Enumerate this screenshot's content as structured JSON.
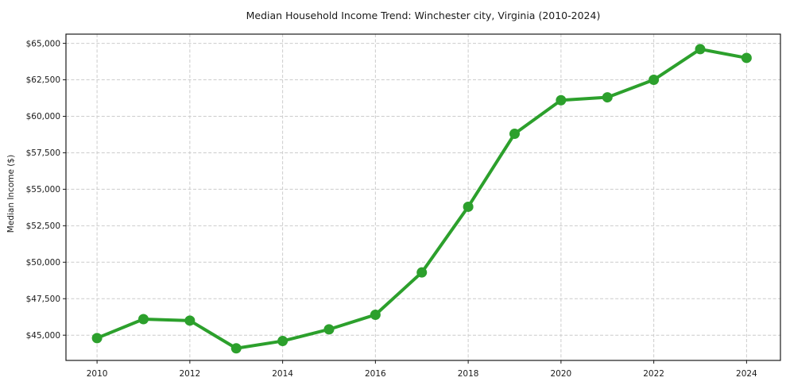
{
  "chart_data": {
    "type": "line",
    "title": "Median Household Income Trend: Winchester city, Virginia (2010-2024)",
    "xlabel": "",
    "ylabel": "Median Income ($)",
    "x": [
      2010,
      2011,
      2012,
      2013,
      2014,
      2015,
      2016,
      2017,
      2018,
      2019,
      2020,
      2021,
      2022,
      2023,
      2024
    ],
    "values": [
      44800,
      46100,
      46000,
      44100,
      44600,
      45400,
      46400,
      49300,
      53800,
      58800,
      61100,
      61300,
      62500,
      64600,
      64000
    ],
    "xlim": [
      2009.33,
      2024.73
    ],
    "ylim": [
      43270,
      65630
    ],
    "x_tick_values": [
      2010,
      2012,
      2014,
      2016,
      2018,
      2020,
      2022,
      2024
    ],
    "x_tick_labels": [
      "2010",
      "2012",
      "2014",
      "2016",
      "2018",
      "2020",
      "2022",
      "2024"
    ],
    "y_tick_values": [
      45000,
      47500,
      50000,
      52500,
      55000,
      57500,
      60000,
      62500,
      65000
    ],
    "y_tick_labels": [
      "$45,000",
      "$47,500",
      "$50,000",
      "$52,500",
      "$55,000",
      "$57,500",
      "$60,000",
      "$62,500",
      "$65,000"
    ],
    "grid": true,
    "legend_position": "none",
    "colors": {
      "line": "#2ca02c",
      "marker": "#2ca02c",
      "grid": "#cccccc",
      "spine": "#1a1a1a",
      "text": "#1a1a1a",
      "background": "#ffffff"
    }
  }
}
